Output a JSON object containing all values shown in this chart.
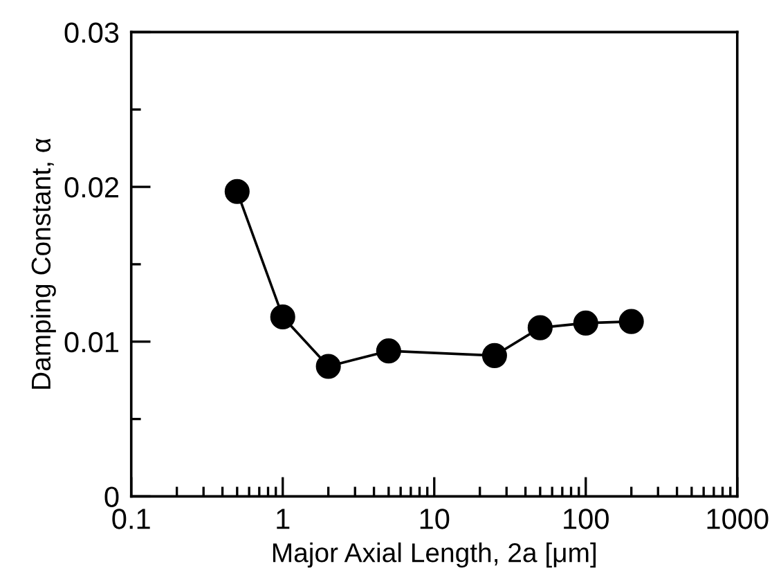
{
  "chart_data": {
    "type": "line",
    "xlabel": "Major Axial Length, 2a [μm]",
    "ylabel": "Damping Constant, α",
    "x": [
      0.5,
      1,
      2,
      5,
      25,
      50,
      100,
      200
    ],
    "series": [
      {
        "color": "#000000",
        "values": [
          0.0197,
          0.0116,
          0.0084,
          0.0094,
          0.0091,
          0.0109,
          0.0112,
          0.0113
        ]
      }
    ],
    "log": "x",
    "xlim": [
      0.1,
      1000
    ],
    "xticks": [
      0.1,
      1,
      10,
      100,
      1000
    ],
    "ylim": [
      0,
      0.03
    ],
    "yticks": [
      0,
      {
        "value": 0.005,
        "label": null
      },
      0.01,
      {
        "value": 0.015,
        "label": null
      },
      0.02,
      {
        "value": 0.025,
        "label": null
      },
      0.03
    ],
    "marker": "circle",
    "line_style": "solid",
    "grid": false,
    "legend": false
  }
}
